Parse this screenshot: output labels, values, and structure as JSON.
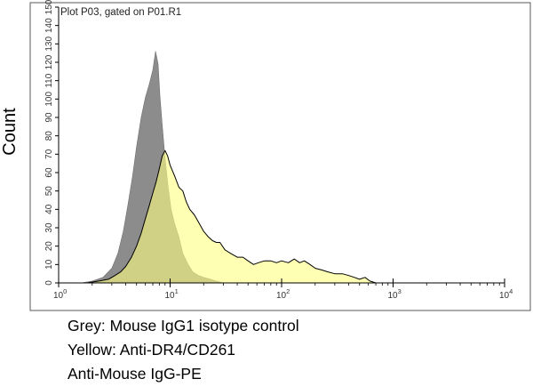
{
  "chart_data": {
    "type": "area",
    "title": "Plot P03, gated on P01.R1",
    "xlabel": "",
    "ylabel": "Count",
    "x_scale": "log",
    "xlim": [
      1,
      10000
    ],
    "ylim": [
      0,
      150
    ],
    "x_ticks": [
      1,
      10,
      100,
      1000,
      10000
    ],
    "x_tick_labels": [
      {
        "base": "10",
        "exp": "0"
      },
      {
        "base": "10",
        "exp": "1"
      },
      {
        "base": "10",
        "exp": "2"
      },
      {
        "base": "10",
        "exp": "3"
      },
      {
        "base": "10",
        "exp": "4"
      }
    ],
    "y_ticks": [
      0,
      10,
      20,
      30,
      40,
      50,
      60,
      70,
      80,
      90,
      100,
      110,
      120,
      130,
      140,
      150
    ],
    "y_tick_labels": [
      "0",
      "10",
      "20",
      "30",
      "40",
      "50",
      "60",
      "70",
      "80",
      "90",
      "100",
      "110",
      "120",
      "130",
      "140",
      "150"
    ],
    "grid": false,
    "series": [
      {
        "color": "#8c8c8c",
        "x": [
          1.6,
          2.0,
          2.5,
          3.0,
          3.4,
          3.8,
          4.2,
          4.6,
          5.0,
          5.5,
          6.0,
          6.5,
          7.0,
          7.4,
          7.8,
          8.1,
          8.5,
          9.0,
          9.6,
          10.2,
          11.0,
          12.0,
          13.0,
          14.5,
          16.0,
          18.0,
          20.0,
          23.0,
          26.0,
          30.0
        ],
        "values": [
          0,
          1,
          3,
          8,
          16,
          28,
          43,
          58,
          74,
          90,
          101,
          108,
          116,
          126,
          119,
          102,
          86,
          68,
          52,
          40,
          32,
          25,
          16,
          10,
          6,
          4,
          3,
          2,
          1,
          0
        ]
      },
      {
        "color": "#ffff80",
        "x": [
          1.8,
          2.3,
          2.8,
          3.2,
          3.6,
          4.0,
          4.5,
          5.0,
          5.5,
          6.0,
          6.5,
          7.0,
          7.5,
          8.0,
          8.5,
          9.0,
          9.5,
          10.0,
          11.0,
          12.0,
          13.0,
          14.0,
          15.0,
          16.5,
          18.0,
          20.0,
          22.0,
          24.0,
          26.0,
          28.0,
          31.0,
          35.0,
          40.0,
          45.0,
          50.0,
          56.0,
          62.0,
          70.0,
          80.0,
          90.0,
          100.0,
          115.0,
          130.0,
          145.0,
          160.0,
          180.0,
          200.0,
          230.0,
          260.0,
          300.0,
          350.0,
          400.0,
          450.0,
          500.0,
          560.0,
          620.0,
          700.0
        ],
        "values": [
          0,
          1,
          2,
          4,
          6,
          9,
          14,
          20,
          27,
          35,
          42,
          49,
          55,
          62,
          69,
          72,
          69,
          64,
          58,
          52,
          50,
          44,
          40,
          37,
          33,
          28,
          25,
          23,
          22,
          22,
          18,
          16,
          14,
          14,
          12,
          10,
          11,
          12,
          12,
          11,
          12,
          11,
          13,
          11,
          12,
          10,
          8,
          7,
          6,
          5,
          5,
          4,
          3,
          2,
          3,
          1,
          0
        ]
      }
    ]
  },
  "caption": {
    "line1": "Grey: Mouse IgG1 isotype control",
    "line2": "Yellow: Anti-DR4/CD261",
    "line3": "Anti-Mouse IgG-PE"
  }
}
